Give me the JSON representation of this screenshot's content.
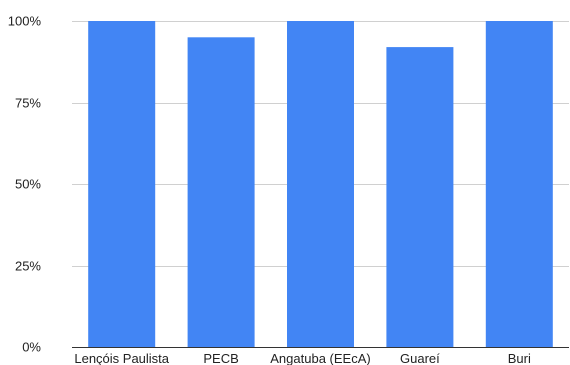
{
  "chart_data": {
    "type": "bar",
    "categories": [
      "Lençóis Paulista",
      "PECB",
      "Angatuba (EEcA)",
      "Guareí",
      "Buri"
    ],
    "values": [
      100,
      95,
      100,
      92,
      100
    ],
    "ylim": [
      0,
      100
    ],
    "yticks": [
      0,
      25,
      50,
      75,
      100
    ],
    "ytick_labels": [
      "0%",
      "25%",
      "50%",
      "75%",
      "100%"
    ],
    "title": "",
    "xlabel": "",
    "ylabel": "",
    "grid": true,
    "legend": "none",
    "colors": {
      "bar": "#4285f4",
      "grid": "#d0d0d0",
      "axis": "#333333",
      "text": "#222222"
    }
  }
}
